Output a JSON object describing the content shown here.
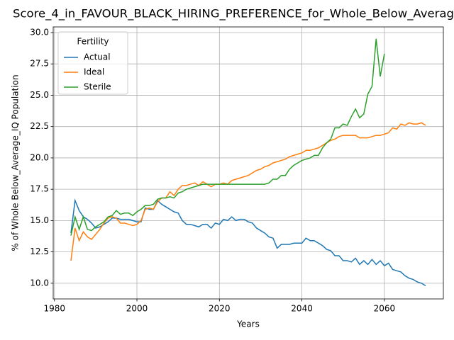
{
  "chart_data": {
    "type": "line",
    "title": "Score_4_in_FAVOUR_BLACK_HIRING_PREFERENCE_for_Whole_Below_Averag",
    "xlabel": "Years",
    "ylabel": "% of Whole Below_Average_IQ Population",
    "x": [
      1984,
      1985,
      1986,
      1987,
      1988,
      1989,
      1990,
      1991,
      1992,
      1993,
      1994,
      1995,
      1996,
      1997,
      1998,
      1999,
      2000,
      2001,
      2002,
      2003,
      2004,
      2005,
      2006,
      2007,
      2008,
      2009,
      2010,
      2011,
      2012,
      2013,
      2014,
      2015,
      2016,
      2017,
      2018,
      2019,
      2020,
      2021,
      2022,
      2023,
      2024,
      2025,
      2026,
      2027,
      2028,
      2029,
      2030,
      2031,
      2032,
      2033,
      2034,
      2035,
      2036,
      2037,
      2038,
      2039,
      2040,
      2041,
      2042,
      2043,
      2044,
      2045,
      2046,
      2047,
      2048,
      2049,
      2050,
      2051,
      2052,
      2053,
      2054,
      2055,
      2056,
      2057,
      2058,
      2059,
      2060,
      2061,
      2062,
      2063,
      2064,
      2065,
      2066,
      2067,
      2068,
      2069,
      2070
    ],
    "series": [
      {
        "name": "Actual",
        "color": "#1f77b4",
        "values": [
          14.0,
          16.6,
          15.8,
          15.3,
          15.1,
          14.8,
          14.4,
          14.5,
          14.7,
          14.9,
          15.2,
          15.2,
          15.1,
          15.1,
          15.1,
          15.0,
          14.9,
          14.9,
          16.0,
          15.9,
          15.9,
          16.6,
          16.3,
          16.1,
          15.9,
          15.7,
          15.6,
          15.0,
          14.7,
          14.7,
          14.6,
          14.5,
          14.7,
          14.7,
          14.4,
          14.8,
          14.7,
          15.1,
          15.0,
          15.3,
          15.0,
          15.1,
          15.1,
          14.9,
          14.8,
          14.4,
          14.2,
          14.0,
          13.7,
          13.6,
          12.8,
          13.1,
          13.1,
          13.1,
          13.2,
          13.2,
          13.2,
          13.6,
          13.4,
          13.4,
          13.2,
          13.0,
          12.7,
          12.6,
          12.2,
          12.2,
          11.8,
          11.8,
          11.7,
          12.0,
          11.5,
          11.8,
          11.5,
          11.9,
          11.5,
          11.8,
          11.4,
          11.6,
          11.1,
          11.0,
          10.9,
          10.6,
          10.4,
          10.3,
          10.1,
          10.0,
          9.8
        ]
      },
      {
        "name": "Ideal",
        "color": "#ff7f0e",
        "values": [
          11.8,
          14.4,
          13.4,
          14.1,
          13.7,
          13.5,
          13.9,
          14.3,
          14.8,
          15.2,
          15.3,
          15.2,
          14.8,
          14.8,
          14.7,
          14.6,
          14.7,
          15.0,
          15.9,
          16.0,
          15.9,
          16.5,
          16.8,
          16.8,
          17.3,
          17.0,
          17.5,
          17.8,
          17.8,
          17.9,
          18.0,
          17.8,
          18.1,
          17.9,
          17.7,
          17.9,
          17.9,
          18.0,
          17.9,
          18.2,
          18.3,
          18.4,
          18.5,
          18.6,
          18.8,
          19.0,
          19.1,
          19.3,
          19.4,
          19.6,
          19.7,
          19.8,
          19.9,
          20.1,
          20.2,
          20.3,
          20.4,
          20.6,
          20.6,
          20.7,
          20.8,
          21.0,
          21.2,
          21.4,
          21.5,
          21.7,
          21.8,
          21.8,
          21.8,
          21.8,
          21.6,
          21.6,
          21.6,
          21.7,
          21.8,
          21.8,
          21.9,
          22.0,
          22.4,
          22.3,
          22.7,
          22.6,
          22.8,
          22.7,
          22.7,
          22.8,
          22.6
        ]
      },
      {
        "name": "Sterile",
        "color": "#2ca02c",
        "values": [
          13.8,
          15.3,
          14.3,
          15.3,
          14.3,
          14.2,
          14.5,
          14.7,
          14.9,
          15.3,
          15.4,
          15.8,
          15.5,
          15.6,
          15.6,
          15.4,
          15.7,
          15.9,
          16.2,
          16.2,
          16.3,
          16.7,
          16.8,
          16.8,
          16.9,
          16.8,
          17.2,
          17.3,
          17.5,
          17.6,
          17.7,
          17.8,
          17.9,
          17.9,
          17.9,
          17.9,
          17.9,
          17.9,
          17.9,
          17.9,
          17.9,
          17.9,
          17.9,
          17.9,
          17.9,
          17.9,
          17.9,
          17.9,
          18.0,
          18.3,
          18.3,
          18.6,
          18.6,
          19.1,
          19.4,
          19.6,
          19.8,
          19.9,
          20.0,
          20.2,
          20.2,
          20.8,
          21.2,
          21.5,
          22.4,
          22.4,
          22.7,
          22.6,
          23.3,
          23.9,
          23.2,
          23.5,
          25.1,
          25.7,
          29.5,
          26.5,
          28.3,
          null,
          null,
          null,
          null,
          null,
          null,
          null,
          null,
          null,
          null
        ]
      }
    ],
    "legend_title": "Fertility",
    "legend": "upper left",
    "grid": true,
    "xlim": [
      1979.7,
      2074.3
    ],
    "xticks": [
      1980,
      2000,
      2020,
      2040,
      2060
    ],
    "ylim": [
      8.75,
      30.45
    ],
    "yticks": [
      {
        "value": 10,
        "label": "10.0"
      },
      {
        "value": 12.5,
        "label": "12.5"
      },
      {
        "value": 15,
        "label": "15.0"
      },
      {
        "value": 17.5,
        "label": "17.5"
      },
      {
        "value": 20,
        "label": "20.0"
      },
      {
        "value": 22.5,
        "label": "22.5"
      },
      {
        "value": 25,
        "label": "25.0"
      },
      {
        "value": 27.5,
        "label": "27.5"
      },
      {
        "value": 30,
        "label": "30.0"
      }
    ]
  }
}
